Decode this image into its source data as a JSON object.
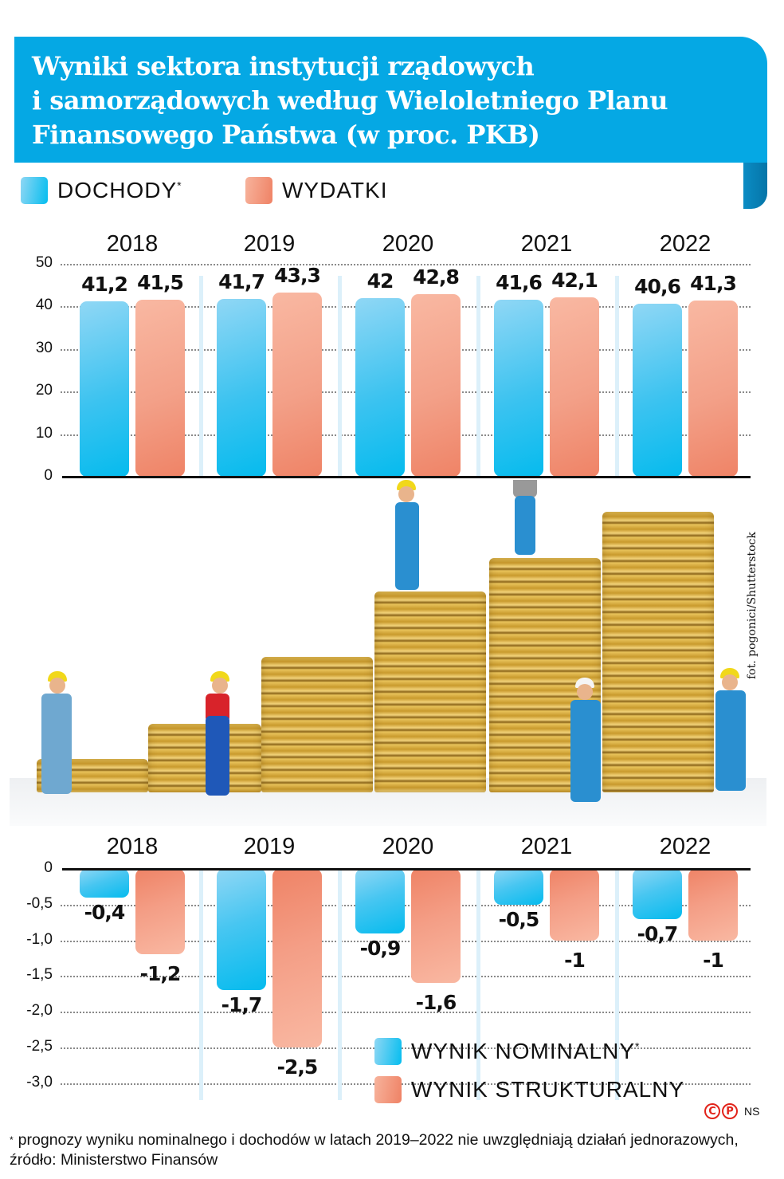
{
  "header": {
    "title_lines": [
      "Wyniki sektora instytucji rządowych",
      "i samorządowych według Wieloletniego Planu",
      "Finansowego Państwa (w proc. PKB)"
    ],
    "title_color": "#05a8e4"
  },
  "legend_top": [
    {
      "label": "DOCHODY",
      "marker": "*",
      "color": "#05bdef"
    },
    {
      "label": "WYDATKI",
      "marker": "",
      "color": "#ef8265"
    }
  ],
  "legend_bottom": [
    {
      "label": "WYNIK NOMINALNY",
      "marker": "*",
      "color": "#05bdef"
    },
    {
      "label": "WYNIK STRUKTURALNY",
      "marker": "",
      "color": "#ef8265"
    }
  ],
  "photo_credit": "fot. pogonici/Shutterstock",
  "copyright": {
    "c_symbol": "C",
    "p_symbol": "P",
    "author": "NS"
  },
  "footnote": {
    "marker": "*",
    "text": "prognozy wyniku nominalnego i dochodów w latach 2019–2022 nie uwzględniają działań jednorazowych, źródło: Ministerstwo Finansów"
  },
  "chart_data": [
    {
      "type": "bar",
      "title": "Wyniki sektora instytucji rządowych i samorządowych według Wieloletniego Planu Finansowego Państwa (w proc. PKB)",
      "xlabel": "",
      "ylabel": "% PKB",
      "categories": [
        "2018",
        "2019",
        "2020",
        "2021",
        "2022"
      ],
      "series": [
        {
          "name": "DOCHODY*",
          "values": [
            41.2,
            41.7,
            42,
            41.6,
            40.6
          ],
          "labels": [
            "41,2",
            "41,7",
            "42",
            "41,6",
            "40,6"
          ],
          "color": "#05bdef"
        },
        {
          "name": "WYDATKI",
          "values": [
            41.5,
            43.3,
            42.8,
            42.1,
            41.3
          ],
          "labels": [
            "41,5",
            "43,3",
            "42,8",
            "42,1",
            "41,3"
          ],
          "color": "#ef8265"
        }
      ],
      "yticks": [
        "50",
        "40",
        "30",
        "20",
        "10",
        "0"
      ],
      "ylim": [
        0,
        50
      ],
      "grid": true,
      "legend_position": "top-left"
    },
    {
      "type": "bar",
      "title": "",
      "xlabel": "",
      "ylabel": "% PKB",
      "categories": [
        "2018",
        "2019",
        "2020",
        "2021",
        "2022"
      ],
      "series": [
        {
          "name": "WYNIK NOMINALNY*",
          "values": [
            -0.4,
            -1.7,
            -0.9,
            -0.5,
            -0.7
          ],
          "labels": [
            "-0,4",
            "-1,7",
            "-0,9",
            "-0,5",
            "-0,7"
          ],
          "color": "#05bdef"
        },
        {
          "name": "WYNIK STRUKTURALNY",
          "values": [
            -1.2,
            -2.5,
            -1.6,
            -1.0,
            -1.0
          ],
          "labels": [
            "-1,2",
            "-2,5",
            "-1,6",
            "-1",
            "-1"
          ],
          "color": "#ef8265"
        }
      ],
      "yticks": [
        "0",
        "-0,5",
        "-1,0",
        "-1,5",
        "-2,0",
        "-2,5",
        "-3,0"
      ],
      "ylim": [
        -3.0,
        0
      ],
      "grid": true,
      "legend_position": "bottom-right"
    }
  ]
}
